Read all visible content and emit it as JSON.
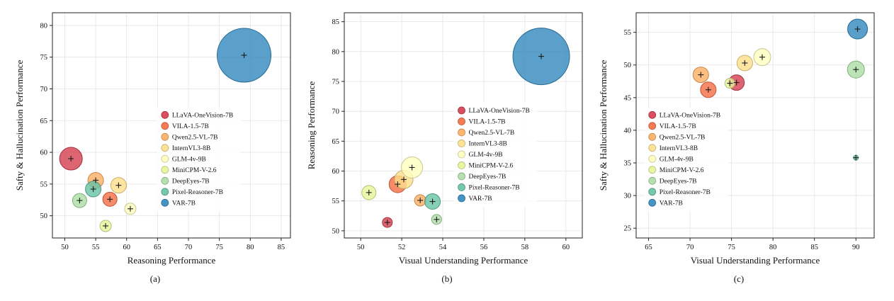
{
  "figure": {
    "title": "Model performance bubble charts"
  },
  "models": [
    {
      "name": "LLaVA-OneVision-7B",
      "color": "#d53e4f"
    },
    {
      "name": "VILA-1.5-7B",
      "color": "#f46d43"
    },
    {
      "name": "Qwen2.5-VL-7B",
      "color": "#fdae61"
    },
    {
      "name": "InternVL3-8B",
      "color": "#fee08b"
    },
    {
      "name": "GLM-4v-9B",
      "color": "#ffffbf"
    },
    {
      "name": "MiniCPM-V-2.6",
      "color": "#e6f598"
    },
    {
      "name": "DeepEyes-7B",
      "color": "#abdda4"
    },
    {
      "name": "Pixel-Reasoner-7B",
      "color": "#66c2a5"
    },
    {
      "name": "VAR-7B",
      "color": "#3288bd"
    }
  ],
  "chart_data": [
    {
      "type": "scatter",
      "caption": "(a)",
      "xlabel": "Reasoning Performance",
      "ylabel": "Safty & Hallucination Performance",
      "xlim": [
        48.0,
        86.5
      ],
      "ylim": [
        46.5,
        82.0
      ],
      "xticks": [
        50,
        55,
        60,
        65,
        70,
        75,
        80,
        85
      ],
      "yticks": [
        50,
        55,
        60,
        65,
        70,
        75,
        80
      ],
      "grid": true,
      "legend_pos": {
        "fx": 0.44,
        "fy": 0.42
      },
      "points": [
        {
          "model": "LLaVA-OneVision-7B",
          "x": 51.0,
          "y": 59.0,
          "r": 16
        },
        {
          "model": "VILA-1.5-7B",
          "x": 57.3,
          "y": 52.6,
          "r": 10
        },
        {
          "model": "Qwen2.5-VL-7B",
          "x": 55.0,
          "y": 55.6,
          "r": 11
        },
        {
          "model": "InternVL3-8B",
          "x": 58.7,
          "y": 54.8,
          "r": 11
        },
        {
          "model": "GLM-4v-9B",
          "x": 60.6,
          "y": 51.1,
          "r": 8
        },
        {
          "model": "MiniCPM-V-2.6",
          "x": 56.6,
          "y": 48.4,
          "r": 8
        },
        {
          "model": "DeepEyes-7B",
          "x": 52.4,
          "y": 52.4,
          "r": 10
        },
        {
          "model": "Pixel-Reasoner-7B",
          "x": 54.6,
          "y": 54.2,
          "r": 11
        },
        {
          "model": "VAR-7B",
          "x": 79.0,
          "y": 75.3,
          "r": 38
        }
      ]
    },
    {
      "type": "scatter",
      "caption": "(b)",
      "xlabel": "Visual Understanding Performance",
      "ylabel": "Reasoning Performance",
      "xlim": [
        49.2,
        60.8
      ],
      "ylim": [
        48.8,
        86.5
      ],
      "xticks": [
        50,
        52,
        54,
        56,
        58,
        60
      ],
      "yticks": [
        50,
        55,
        60,
        65,
        70,
        75,
        80,
        85
      ],
      "grid": true,
      "legend_pos": {
        "fx": 0.46,
        "fy": 0.4
      },
      "points": [
        {
          "model": "LLaVA-OneVision-7B",
          "x": 51.3,
          "y": 51.4,
          "r": 7
        },
        {
          "model": "VILA-1.5-7B",
          "x": 51.8,
          "y": 57.8,
          "r": 12
        },
        {
          "model": "Qwen2.5-VL-7B",
          "x": 52.9,
          "y": 55.1,
          "r": 8
        },
        {
          "model": "InternVL3-8B",
          "x": 52.1,
          "y": 58.6,
          "r": 13
        },
        {
          "model": "GLM-4v-9B",
          "x": 52.5,
          "y": 60.6,
          "r": 15
        },
        {
          "model": "MiniCPM-V-2.6",
          "x": 50.4,
          "y": 56.4,
          "r": 10
        },
        {
          "model": "DeepEyes-7B",
          "x": 53.7,
          "y": 51.9,
          "r": 7
        },
        {
          "model": "Pixel-Reasoner-7B",
          "x": 53.5,
          "y": 54.9,
          "r": 11
        },
        {
          "model": "VAR-7B",
          "x": 58.8,
          "y": 79.2,
          "r": 40
        }
      ]
    },
    {
      "type": "scatter",
      "caption": "(c)",
      "xlabel": "Visual Understanding Performance",
      "ylabel": "Safty & Hallucination Performance",
      "xlim": [
        63.5,
        92.2
      ],
      "ylim": [
        23.5,
        58.0
      ],
      "xticks": [
        65,
        70,
        75,
        80,
        85,
        90
      ],
      "yticks": [
        25,
        30,
        35,
        40,
        45,
        50,
        55
      ],
      "grid": true,
      "legend_pos": {
        "fx": 0.035,
        "fy": 0.42
      },
      "points": [
        {
          "model": "LLaVA-OneVision-7B",
          "x": 75.6,
          "y": 47.3,
          "r": 11
        },
        {
          "model": "VILA-1.5-7B",
          "x": 72.2,
          "y": 46.2,
          "r": 11
        },
        {
          "model": "Qwen2.5-VL-7B",
          "x": 71.3,
          "y": 48.5,
          "r": 11
        },
        {
          "model": "InternVL3-8B",
          "x": 76.6,
          "y": 50.3,
          "r": 11
        },
        {
          "model": "GLM-4v-9B",
          "x": 78.7,
          "y": 51.2,
          "r": 12
        },
        {
          "model": "MiniCPM-V-2.6",
          "x": 74.8,
          "y": 47.2,
          "r": 7
        },
        {
          "model": "DeepEyes-7B",
          "x": 90.0,
          "y": 49.3,
          "r": 12
        },
        {
          "model": "Pixel-Reasoner-7B",
          "x": 90.0,
          "y": 35.8,
          "r": 3.5
        },
        {
          "model": "VAR-7B",
          "x": 90.2,
          "y": 55.5,
          "r": 14
        }
      ]
    }
  ]
}
